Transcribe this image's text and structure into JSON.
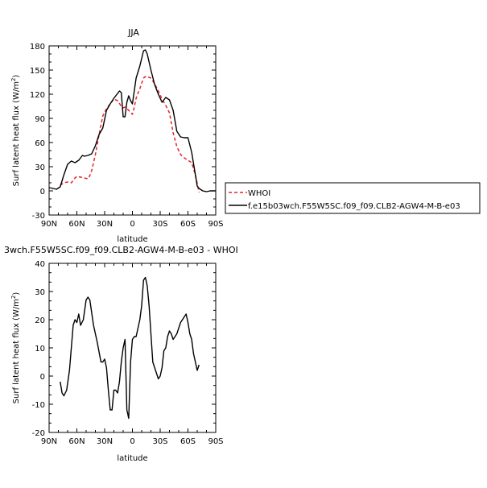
{
  "chart_data": [
    {
      "type": "line",
      "title": "JJA",
      "xlabel": "latitude",
      "ylabel": "Surf latent heat flux (W/m²)",
      "xlim": [
        -90,
        90
      ],
      "ylim": [
        -30,
        180
      ],
      "xticks": [
        -90,
        -60,
        -30,
        0,
        30,
        60,
        90
      ],
      "xticklabels": [
        "90N",
        "60N",
        "30N",
        "0",
        "30S",
        "60S",
        "90S"
      ],
      "yticks": [
        -30,
        0,
        30,
        60,
        90,
        120,
        150,
        180
      ],
      "yticklabels": [
        "-30",
        "0",
        "30",
        "60",
        "90",
        "120",
        "150",
        "180"
      ],
      "legend_position": "right",
      "series": [
        {
          "name": "WHOI",
          "color": "#e8212b",
          "dash": "dashed",
          "x": [
            -78,
            -74,
            -70,
            -66,
            -62,
            -60,
            -56,
            -52,
            -48,
            -46,
            -44,
            -40,
            -36,
            -32,
            -28,
            -24,
            -20,
            -16,
            -12,
            -10,
            -8,
            -4,
            0,
            2,
            4,
            8,
            12,
            14,
            16,
            20,
            24,
            28,
            32,
            36,
            40,
            44,
            48,
            52,
            56,
            60,
            64,
            68,
            72
          ],
          "y": [
            7,
            10,
            11,
            10,
            16,
            18,
            17,
            16,
            15,
            19,
            25,
            45,
            70,
            93,
            102,
            108,
            114,
            112,
            105,
            103,
            104,
            100,
            95,
            104,
            115,
            127,
            140,
            142,
            142,
            140,
            133,
            124,
            114,
            106,
            97,
            72,
            55,
            45,
            41,
            38,
            35,
            20,
            -2
          ]
        },
        {
          "name": "f.e15b03wch.F55W5SC.f09_f09.CLB2-AGW4-M-B-e03",
          "color": "#000000",
          "dash": "solid",
          "x": [
            -90,
            -86,
            -82,
            -78,
            -74,
            -70,
            -66,
            -62,
            -58,
            -54,
            -52,
            -48,
            -44,
            -40,
            -36,
            -32,
            -28,
            -24,
            -20,
            -18,
            -14,
            -12,
            -10,
            -8,
            -6,
            -4,
            -2,
            0,
            4,
            8,
            12,
            14,
            16,
            20,
            24,
            28,
            32,
            36,
            40,
            44,
            48,
            52,
            56,
            60,
            64,
            68,
            70,
            72,
            76,
            80,
            84,
            90
          ],
          "y": [
            4,
            3,
            2,
            5,
            20,
            33,
            37,
            35,
            38,
            44,
            43,
            44,
            46,
            56,
            70,
            78,
            100,
            108,
            115,
            118,
            124,
            122,
            92,
            92,
            110,
            118,
            112,
            108,
            140,
            155,
            174,
            175,
            170,
            150,
            132,
            120,
            110,
            116,
            113,
            100,
            74,
            67,
            66,
            66,
            48,
            20,
            6,
            3,
            0,
            -1,
            0,
            0
          ]
        }
      ]
    },
    {
      "type": "line",
      "title": "3wch.F55W5SC.f09_f09.CLB2-AGW4-M-B-e03 - WHOI",
      "xlabel": "latitude",
      "ylabel": "Surf latent heat flux (W/m²)",
      "xlim": [
        -90,
        90
      ],
      "ylim": [
        -20,
        40
      ],
      "xticks": [
        -90,
        -60,
        -30,
        0,
        30,
        60,
        90
      ],
      "xticklabels": [
        "90N",
        "60N",
        "30N",
        "0",
        "30S",
        "60S",
        "90S"
      ],
      "yticks": [
        -20,
        -10,
        0,
        10,
        20,
        30,
        40
      ],
      "yticklabels": [
        "-20",
        "-10",
        "0",
        "10",
        "20",
        "30",
        "40"
      ],
      "series": [
        {
          "color": "#000000",
          "dash": "solid",
          "x": [
            -78,
            -76,
            -74,
            -71,
            -68,
            -66,
            -64,
            -62,
            -60,
            -58,
            -56,
            -53,
            -50,
            -48,
            -46,
            -42,
            -38,
            -34,
            -32,
            -30,
            -28,
            -26,
            -24,
            -22,
            -20,
            -18,
            -16,
            -14,
            -12,
            -10,
            -8,
            -6,
            -4,
            -2,
            0,
            2,
            4,
            8,
            10,
            12,
            14,
            16,
            18,
            20,
            22,
            24,
            26,
            28,
            30,
            32,
            34,
            36,
            38,
            40,
            42,
            44,
            46,
            48,
            50,
            52,
            54,
            56,
            58,
            60,
            62,
            64,
            66,
            68,
            70,
            72
          ],
          "y": [
            -2,
            -6,
            -7,
            -5,
            2,
            10,
            18,
            20,
            19,
            22,
            18,
            20,
            27,
            28,
            27,
            18,
            12,
            5,
            5,
            6,
            3,
            -5,
            -12,
            -12,
            -5,
            -5,
            -6,
            -2,
            5,
            10,
            13,
            -12,
            -15,
            5,
            13,
            14,
            14,
            20,
            25,
            34,
            35,
            32,
            25,
            15,
            5,
            3,
            1,
            -1,
            0,
            3,
            9,
            10,
            14,
            16,
            15,
            13,
            14,
            15,
            17,
            19,
            20,
            21,
            22,
            19,
            15,
            13,
            8,
            5,
            2,
            4
          ]
        }
      ]
    }
  ]
}
